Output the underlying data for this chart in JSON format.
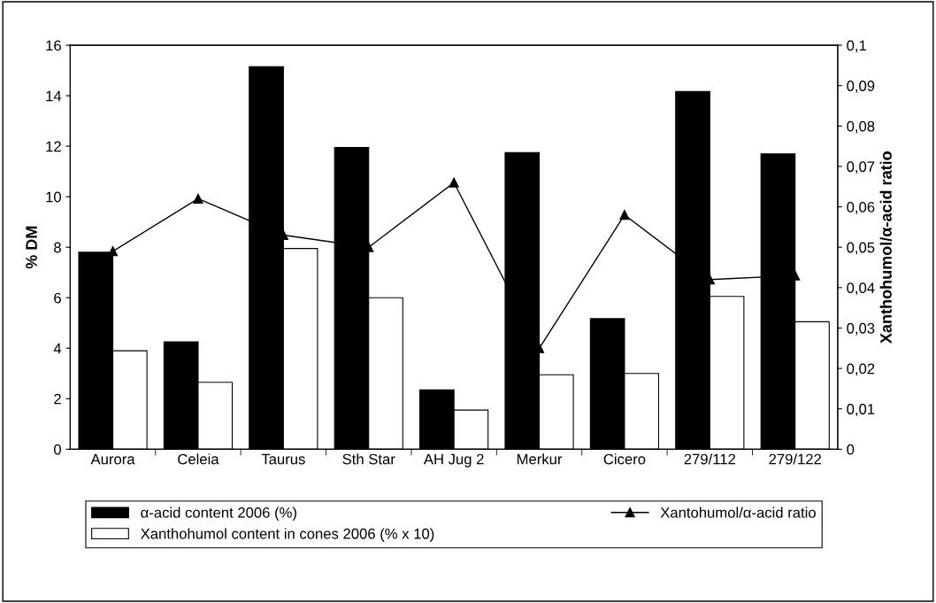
{
  "chart_data": {
    "type": "bar",
    "categories": [
      "Aurora",
      "Celeia",
      "Taurus",
      "Sth Star",
      "AH Jug 2",
      "Merkur",
      "Cicero",
      "279/112",
      "279/122"
    ],
    "series": [
      {
        "name": "α-acid content 2006 (%)",
        "color": "#000000",
        "values": [
          7.8,
          4.25,
          15.15,
          11.95,
          2.35,
          11.75,
          5.17,
          14.17,
          11.7
        ]
      },
      {
        "name": "Xanthohumol content in cones 2006 (% x 10)",
        "color": "#ffffff",
        "values": [
          3.9,
          2.65,
          7.95,
          6.0,
          1.55,
          2.95,
          3.0,
          6.05,
          5.05
        ]
      },
      {
        "name": "Xantohumol/α-acid ratio",
        "type": "line",
        "axis": "y2",
        "color": "#000000",
        "marker": "triangle",
        "values": [
          0.049,
          0.062,
          0.053,
          0.05,
          0.066,
          0.025,
          0.058,
          0.042,
          0.043
        ]
      }
    ],
    "ylabel": "% DM",
    "y2label": "Xanthohumol/α-acid ratio",
    "ylim": [
      0,
      16
    ],
    "yticks": [
      0,
      2,
      4,
      6,
      8,
      10,
      12,
      14,
      16
    ],
    "y2lim": [
      0,
      0.1
    ],
    "y2ticks": [
      {
        "value": 0,
        "label": "0"
      },
      {
        "value": 0.01,
        "label": "0,01"
      },
      {
        "value": 0.02,
        "label": "0,02"
      },
      {
        "value": 0.03,
        "label": "0,03"
      },
      {
        "value": 0.04,
        "label": "0,04"
      },
      {
        "value": 0.05,
        "label": "0,05"
      },
      {
        "value": 0.06,
        "label": "0,06"
      },
      {
        "value": 0.07,
        "label": "0,07"
      },
      {
        "value": 0.08,
        "label": "0,08"
      },
      {
        "value": 0.09,
        "label": "0,09"
      },
      {
        "value": 0.1,
        "label": "0,1"
      }
    ],
    "legend": "bottom",
    "grid": false
  }
}
